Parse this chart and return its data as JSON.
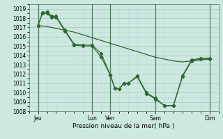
{
  "background_color": "#cce8e0",
  "grid_major_color": "#aaccc4",
  "grid_minor_color": "#bdddd6",
  "vline_color": "#336644",
  "line_color": "#2d6632",
  "marker_color": "#2d6632",
  "xlabel": "Pression niveau de la mer( hPa )",
  "ylim": [
    1008,
    1019.5
  ],
  "xlim": [
    0,
    21
  ],
  "ytick_positions": [
    1008,
    1009,
    1010,
    1011,
    1012,
    1013,
    1014,
    1015,
    1016,
    1017,
    1018,
    1019
  ],
  "xtick_labels": [
    "Jeu",
    "Lun",
    "Ven",
    "Sam",
    "Dim"
  ],
  "xtick_positions": [
    1,
    7,
    9,
    14,
    20
  ],
  "vline_positions": [
    1,
    7,
    9,
    14,
    20
  ],
  "line1_x": [
    1,
    2,
    3,
    4,
    5,
    6,
    7,
    8,
    9,
    10,
    11,
    12,
    13,
    14,
    15,
    16,
    17,
    18,
    19,
    20
  ],
  "line1_y": [
    1017.2,
    1017.1,
    1016.9,
    1016.7,
    1016.5,
    1016.2,
    1015.9,
    1015.6,
    1015.3,
    1015.0,
    1014.7,
    1014.4,
    1014.1,
    1013.8,
    1013.6,
    1013.4,
    1013.3,
    1013.4,
    1013.5,
    1013.6
  ],
  "line2_x": [
    1,
    1.5,
    2,
    2.5,
    3,
    4,
    5,
    6,
    7,
    8,
    9,
    9.5,
    10,
    10.5,
    11,
    12,
    13,
    14,
    15,
    16,
    17,
    18,
    19,
    20
  ],
  "line2_y": [
    1017.2,
    1018.6,
    1018.7,
    1018.2,
    1018.2,
    1016.7,
    1015.2,
    1015.1,
    1015.1,
    1014.2,
    1011.9,
    1010.5,
    1010.4,
    1011.0,
    1011.0,
    1011.8,
    1010.0,
    1009.4,
    1008.6,
    1008.6,
    1011.8,
    1013.5,
    1013.7,
    1013.7
  ],
  "line3_x": [
    1,
    1.5,
    2,
    2.5,
    3,
    4,
    5,
    6,
    7,
    8,
    9,
    9.5,
    10,
    10.5,
    11,
    12,
    13,
    14,
    15,
    16,
    17,
    18,
    19,
    20
  ],
  "line3_y": [
    1017.2,
    1018.5,
    1018.5,
    1018.1,
    1018.1,
    1016.6,
    1015.1,
    1015.0,
    1015.0,
    1013.8,
    1011.9,
    1010.5,
    1010.4,
    1011.0,
    1011.0,
    1011.7,
    1009.9,
    1009.3,
    1008.6,
    1008.6,
    1011.7,
    1013.4,
    1013.6,
    1013.6
  ]
}
